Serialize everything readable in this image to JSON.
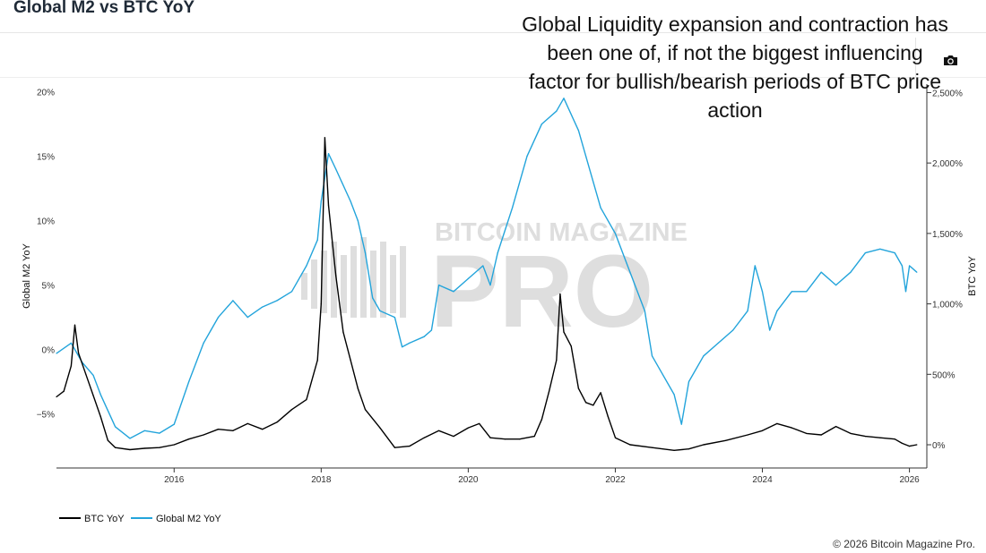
{
  "header": {
    "title": "Global M2 vs BTC YoY"
  },
  "annotation": "Global Liquidity expansion and contraction has been one of, if not the biggest influencing factor for bullish/bearish periods of BTC price action",
  "toolbar": {
    "icon": "camera-icon"
  },
  "watermark": {
    "top": "BITCOIN MAGAZINE",
    "main": "PRO"
  },
  "footer": {
    "copyright": "© 2026 Bitcoin Magazine Pro."
  },
  "colors": {
    "btc": "#000000",
    "m2": "#23a4db"
  },
  "chart_data": {
    "type": "line",
    "title": "Global M2 vs BTC YoY",
    "xlabel": "",
    "ylabel_left": "Global M2 YoY",
    "ylabel_right": "BTC YoY",
    "xlim": [
      2014.4,
      2026.2
    ],
    "ylim_left": [
      -9.2,
      20.6
    ],
    "ylim_right": [
      -165,
      2560
    ],
    "x_ticks": [
      2016,
      2018,
      2020,
      2022,
      2024,
      2026
    ],
    "x_tick_labels": [
      "2016",
      "2018",
      "2020",
      "2022",
      "2024",
      "2026"
    ],
    "y_left_ticks": [
      -5,
      0,
      5,
      10,
      15,
      20
    ],
    "y_left_tick_labels": [
      "−5%",
      "0%",
      "5%",
      "10%",
      "15%",
      "20%"
    ],
    "y_right_ticks": [
      0,
      500,
      1000,
      1500,
      2000,
      2500
    ],
    "y_right_tick_labels": [
      "0%",
      "500%",
      "1,000%",
      "1,500%",
      "2,000%",
      "2,500%"
    ],
    "grid": false,
    "legend": "bottom-left",
    "series": [
      {
        "name": "BTC YoY",
        "axis": "right",
        "color": "#000000",
        "points": [
          [
            2014.4,
            340
          ],
          [
            2014.5,
            380
          ],
          [
            2014.6,
            560
          ],
          [
            2014.65,
            850
          ],
          [
            2014.7,
            650
          ],
          [
            2014.8,
            500
          ],
          [
            2014.9,
            350
          ],
          [
            2015.0,
            200
          ],
          [
            2015.1,
            30
          ],
          [
            2015.2,
            -20
          ],
          [
            2015.4,
            -35
          ],
          [
            2015.6,
            -25
          ],
          [
            2015.8,
            -20
          ],
          [
            2016.0,
            0
          ],
          [
            2016.2,
            40
          ],
          [
            2016.4,
            70
          ],
          [
            2016.6,
            110
          ],
          [
            2016.8,
            100
          ],
          [
            2017.0,
            150
          ],
          [
            2017.2,
            110
          ],
          [
            2017.4,
            160
          ],
          [
            2017.6,
            250
          ],
          [
            2017.8,
            320
          ],
          [
            2017.95,
            600
          ],
          [
            2018.0,
            1000
          ],
          [
            2018.05,
            2180
          ],
          [
            2018.1,
            1700
          ],
          [
            2018.2,
            1200
          ],
          [
            2018.3,
            800
          ],
          [
            2018.4,
            600
          ],
          [
            2018.5,
            400
          ],
          [
            2018.6,
            250
          ],
          [
            2018.8,
            120
          ],
          [
            2019.0,
            -20
          ],
          [
            2019.2,
            -10
          ],
          [
            2019.4,
            50
          ],
          [
            2019.6,
            100
          ],
          [
            2019.8,
            60
          ],
          [
            2020.0,
            120
          ],
          [
            2020.15,
            150
          ],
          [
            2020.3,
            50
          ],
          [
            2020.5,
            40
          ],
          [
            2020.7,
            40
          ],
          [
            2020.9,
            60
          ],
          [
            2021.0,
            180
          ],
          [
            2021.1,
            380
          ],
          [
            2021.2,
            600
          ],
          [
            2021.25,
            1070
          ],
          [
            2021.3,
            800
          ],
          [
            2021.4,
            700
          ],
          [
            2021.5,
            400
          ],
          [
            2021.6,
            300
          ],
          [
            2021.7,
            280
          ],
          [
            2021.8,
            370
          ],
          [
            2021.9,
            200
          ],
          [
            2022.0,
            50
          ],
          [
            2022.2,
            0
          ],
          [
            2022.5,
            -20
          ],
          [
            2022.8,
            -40
          ],
          [
            2023.0,
            -30
          ],
          [
            2023.2,
            0
          ],
          [
            2023.5,
            30
          ],
          [
            2023.8,
            70
          ],
          [
            2024.0,
            100
          ],
          [
            2024.2,
            150
          ],
          [
            2024.4,
            120
          ],
          [
            2024.6,
            80
          ],
          [
            2024.8,
            70
          ],
          [
            2025.0,
            130
          ],
          [
            2025.2,
            80
          ],
          [
            2025.4,
            60
          ],
          [
            2025.6,
            50
          ],
          [
            2025.8,
            40
          ],
          [
            2025.9,
            10
          ],
          [
            2026.0,
            -10
          ],
          [
            2026.1,
            0
          ]
        ]
      },
      {
        "name": "Global M2 YoY",
        "axis": "left",
        "color": "#23a4db",
        "points": [
          [
            2014.4,
            -0.3
          ],
          [
            2014.6,
            0.5
          ],
          [
            2014.75,
            -1.0
          ],
          [
            2014.9,
            -2.0
          ],
          [
            2015.0,
            -3.5
          ],
          [
            2015.2,
            -6.0
          ],
          [
            2015.4,
            -6.9
          ],
          [
            2015.6,
            -6.3
          ],
          [
            2015.8,
            -6.5
          ],
          [
            2016.0,
            -5.8
          ],
          [
            2016.2,
            -2.5
          ],
          [
            2016.4,
            0.5
          ],
          [
            2016.5,
            1.5
          ],
          [
            2016.6,
            2.5
          ],
          [
            2016.8,
            3.8
          ],
          [
            2017.0,
            2.5
          ],
          [
            2017.2,
            3.3
          ],
          [
            2017.4,
            3.8
          ],
          [
            2017.6,
            4.5
          ],
          [
            2017.8,
            6.5
          ],
          [
            2017.95,
            8.5
          ],
          [
            2018.0,
            11.5
          ],
          [
            2018.1,
            15.2
          ],
          [
            2018.2,
            14.0
          ],
          [
            2018.4,
            11.5
          ],
          [
            2018.5,
            10.0
          ],
          [
            2018.6,
            7.5
          ],
          [
            2018.7,
            4.0
          ],
          [
            2018.8,
            3.0
          ],
          [
            2019.0,
            2.5
          ],
          [
            2019.1,
            0.2
          ],
          [
            2019.2,
            0.5
          ],
          [
            2019.4,
            1.0
          ],
          [
            2019.5,
            1.5
          ],
          [
            2019.6,
            5.0
          ],
          [
            2019.8,
            4.5
          ],
          [
            2020.0,
            5.5
          ],
          [
            2020.2,
            6.5
          ],
          [
            2020.3,
            5.0
          ],
          [
            2020.4,
            7.5
          ],
          [
            2020.6,
            11.0
          ],
          [
            2020.8,
            15.0
          ],
          [
            2021.0,
            17.5
          ],
          [
            2021.2,
            18.5
          ],
          [
            2021.3,
            19.5
          ],
          [
            2021.5,
            17.0
          ],
          [
            2021.6,
            15.0
          ],
          [
            2021.8,
            11.0
          ],
          [
            2022.0,
            9.0
          ],
          [
            2022.2,
            6.0
          ],
          [
            2022.4,
            3.0
          ],
          [
            2022.5,
            -0.5
          ],
          [
            2022.6,
            -1.5
          ],
          [
            2022.8,
            -3.5
          ],
          [
            2022.9,
            -5.8
          ],
          [
            2023.0,
            -2.5
          ],
          [
            2023.2,
            -0.5
          ],
          [
            2023.4,
            0.5
          ],
          [
            2023.6,
            1.5
          ],
          [
            2023.8,
            3.0
          ],
          [
            2023.9,
            6.5
          ],
          [
            2024.0,
            4.5
          ],
          [
            2024.1,
            1.5
          ],
          [
            2024.2,
            3.0
          ],
          [
            2024.4,
            4.5
          ],
          [
            2024.6,
            4.5
          ],
          [
            2024.8,
            6.0
          ],
          [
            2025.0,
            5.0
          ],
          [
            2025.2,
            6.0
          ],
          [
            2025.4,
            7.5
          ],
          [
            2025.6,
            7.8
          ],
          [
            2025.8,
            7.5
          ],
          [
            2025.9,
            6.5
          ],
          [
            2025.95,
            4.5
          ],
          [
            2026.0,
            6.5
          ],
          [
            2026.1,
            6.0
          ]
        ]
      }
    ]
  }
}
